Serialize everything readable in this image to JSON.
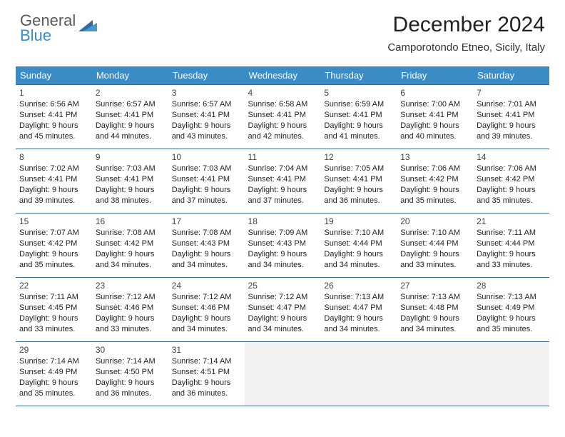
{
  "logo": {
    "text1": "General",
    "text2": "Blue"
  },
  "title": "December 2024",
  "location": "Camporotondo Etneo, Sicily, Italy",
  "colors": {
    "header_bg": "#3b8bc4",
    "header_text": "#ffffff",
    "border": "#3b6a8f",
    "logo_gray": "#5a5a5a",
    "logo_blue": "#3b8bc4"
  },
  "days_of_week": [
    "Sunday",
    "Monday",
    "Tuesday",
    "Wednesday",
    "Thursday",
    "Friday",
    "Saturday"
  ],
  "weeks": [
    [
      {
        "n": "1",
        "sr": "6:56 AM",
        "ss": "4:41 PM",
        "dl": "9 hours and 45 minutes."
      },
      {
        "n": "2",
        "sr": "6:57 AM",
        "ss": "4:41 PM",
        "dl": "9 hours and 44 minutes."
      },
      {
        "n": "3",
        "sr": "6:57 AM",
        "ss": "4:41 PM",
        "dl": "9 hours and 43 minutes."
      },
      {
        "n": "4",
        "sr": "6:58 AM",
        "ss": "4:41 PM",
        "dl": "9 hours and 42 minutes."
      },
      {
        "n": "5",
        "sr": "6:59 AM",
        "ss": "4:41 PM",
        "dl": "9 hours and 41 minutes."
      },
      {
        "n": "6",
        "sr": "7:00 AM",
        "ss": "4:41 PM",
        "dl": "9 hours and 40 minutes."
      },
      {
        "n": "7",
        "sr": "7:01 AM",
        "ss": "4:41 PM",
        "dl": "9 hours and 39 minutes."
      }
    ],
    [
      {
        "n": "8",
        "sr": "7:02 AM",
        "ss": "4:41 PM",
        "dl": "9 hours and 39 minutes."
      },
      {
        "n": "9",
        "sr": "7:03 AM",
        "ss": "4:41 PM",
        "dl": "9 hours and 38 minutes."
      },
      {
        "n": "10",
        "sr": "7:03 AM",
        "ss": "4:41 PM",
        "dl": "9 hours and 37 minutes."
      },
      {
        "n": "11",
        "sr": "7:04 AM",
        "ss": "4:41 PM",
        "dl": "9 hours and 37 minutes."
      },
      {
        "n": "12",
        "sr": "7:05 AM",
        "ss": "4:41 PM",
        "dl": "9 hours and 36 minutes."
      },
      {
        "n": "13",
        "sr": "7:06 AM",
        "ss": "4:42 PM",
        "dl": "9 hours and 35 minutes."
      },
      {
        "n": "14",
        "sr": "7:06 AM",
        "ss": "4:42 PM",
        "dl": "9 hours and 35 minutes."
      }
    ],
    [
      {
        "n": "15",
        "sr": "7:07 AM",
        "ss": "4:42 PM",
        "dl": "9 hours and 35 minutes."
      },
      {
        "n": "16",
        "sr": "7:08 AM",
        "ss": "4:42 PM",
        "dl": "9 hours and 34 minutes."
      },
      {
        "n": "17",
        "sr": "7:08 AM",
        "ss": "4:43 PM",
        "dl": "9 hours and 34 minutes."
      },
      {
        "n": "18",
        "sr": "7:09 AM",
        "ss": "4:43 PM",
        "dl": "9 hours and 34 minutes."
      },
      {
        "n": "19",
        "sr": "7:10 AM",
        "ss": "4:44 PM",
        "dl": "9 hours and 34 minutes."
      },
      {
        "n": "20",
        "sr": "7:10 AM",
        "ss": "4:44 PM",
        "dl": "9 hours and 33 minutes."
      },
      {
        "n": "21",
        "sr": "7:11 AM",
        "ss": "4:44 PM",
        "dl": "9 hours and 33 minutes."
      }
    ],
    [
      {
        "n": "22",
        "sr": "7:11 AM",
        "ss": "4:45 PM",
        "dl": "9 hours and 33 minutes."
      },
      {
        "n": "23",
        "sr": "7:12 AM",
        "ss": "4:46 PM",
        "dl": "9 hours and 33 minutes."
      },
      {
        "n": "24",
        "sr": "7:12 AM",
        "ss": "4:46 PM",
        "dl": "9 hours and 34 minutes."
      },
      {
        "n": "25",
        "sr": "7:12 AM",
        "ss": "4:47 PM",
        "dl": "9 hours and 34 minutes."
      },
      {
        "n": "26",
        "sr": "7:13 AM",
        "ss": "4:47 PM",
        "dl": "9 hours and 34 minutes."
      },
      {
        "n": "27",
        "sr": "7:13 AM",
        "ss": "4:48 PM",
        "dl": "9 hours and 34 minutes."
      },
      {
        "n": "28",
        "sr": "7:13 AM",
        "ss": "4:49 PM",
        "dl": "9 hours and 35 minutes."
      }
    ],
    [
      {
        "n": "29",
        "sr": "7:14 AM",
        "ss": "4:49 PM",
        "dl": "9 hours and 35 minutes."
      },
      {
        "n": "30",
        "sr": "7:14 AM",
        "ss": "4:50 PM",
        "dl": "9 hours and 36 minutes."
      },
      {
        "n": "31",
        "sr": "7:14 AM",
        "ss": "4:51 PM",
        "dl": "9 hours and 36 minutes."
      },
      {
        "empty": true
      },
      {
        "empty": true
      },
      {
        "empty": true
      },
      {
        "empty": true
      }
    ]
  ],
  "labels": {
    "sunrise": "Sunrise: ",
    "sunset": "Sunset: ",
    "daylight": "Daylight: "
  }
}
